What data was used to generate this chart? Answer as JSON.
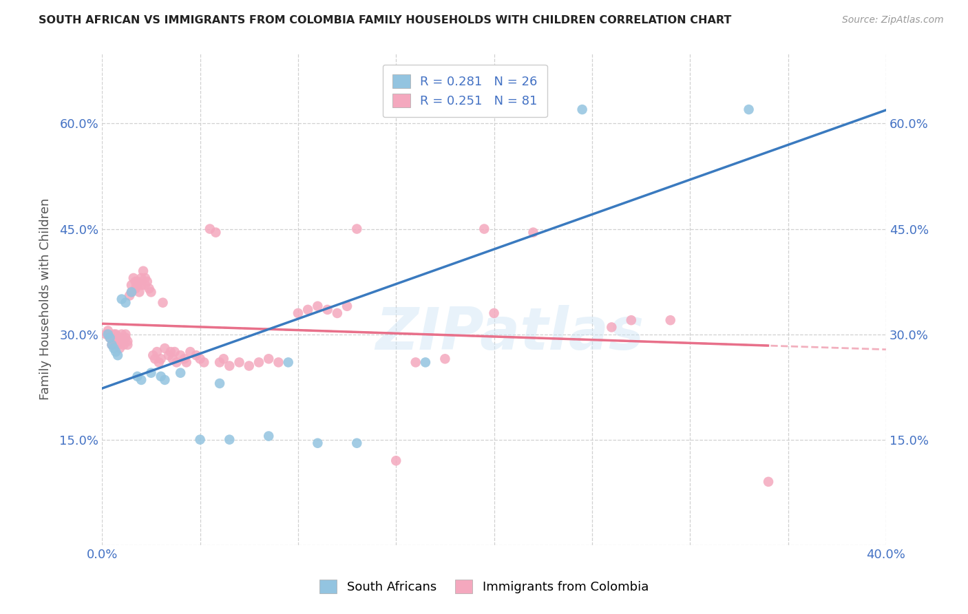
{
  "title": "SOUTH AFRICAN VS IMMIGRANTS FROM COLOMBIA FAMILY HOUSEHOLDS WITH CHILDREN CORRELATION CHART",
  "source": "Source: ZipAtlas.com",
  "ylabel": "Family Households with Children",
  "xlim": [
    0.0,
    0.4
  ],
  "ylim": [
    0.0,
    0.7
  ],
  "x_ticks": [
    0.0,
    0.05,
    0.1,
    0.15,
    0.2,
    0.25,
    0.3,
    0.35,
    0.4
  ],
  "y_ticks": [
    0.0,
    0.15,
    0.3,
    0.45,
    0.6
  ],
  "blue_R": 0.281,
  "blue_N": 26,
  "pink_R": 0.251,
  "pink_N": 81,
  "blue_color": "#93c4e0",
  "pink_color": "#f4a8be",
  "blue_line_color": "#3a7abf",
  "pink_line_color": "#e8708a",
  "blue_scatter": [
    [
      0.003,
      0.3
    ],
    [
      0.004,
      0.295
    ],
    [
      0.005,
      0.285
    ],
    [
      0.006,
      0.28
    ],
    [
      0.007,
      0.275
    ],
    [
      0.008,
      0.27
    ],
    [
      0.01,
      0.35
    ],
    [
      0.012,
      0.345
    ],
    [
      0.015,
      0.36
    ],
    [
      0.018,
      0.24
    ],
    [
      0.02,
      0.235
    ],
    [
      0.025,
      0.245
    ],
    [
      0.03,
      0.24
    ],
    [
      0.032,
      0.235
    ],
    [
      0.04,
      0.245
    ],
    [
      0.05,
      0.15
    ],
    [
      0.06,
      0.23
    ],
    [
      0.065,
      0.15
    ],
    [
      0.085,
      0.155
    ],
    [
      0.095,
      0.26
    ],
    [
      0.11,
      0.145
    ],
    [
      0.13,
      0.145
    ],
    [
      0.165,
      0.26
    ],
    [
      0.205,
      0.62
    ],
    [
      0.245,
      0.62
    ],
    [
      0.33,
      0.62
    ]
  ],
  "pink_scatter": [
    [
      0.002,
      0.3
    ],
    [
      0.003,
      0.305
    ],
    [
      0.004,
      0.295
    ],
    [
      0.005,
      0.285
    ],
    [
      0.006,
      0.29
    ],
    [
      0.006,
      0.3
    ],
    [
      0.007,
      0.295
    ],
    [
      0.007,
      0.3
    ],
    [
      0.008,
      0.29
    ],
    [
      0.008,
      0.285
    ],
    [
      0.009,
      0.28
    ],
    [
      0.009,
      0.295
    ],
    [
      0.01,
      0.3
    ],
    [
      0.01,
      0.29
    ],
    [
      0.011,
      0.285
    ],
    [
      0.012,
      0.295
    ],
    [
      0.012,
      0.3
    ],
    [
      0.013,
      0.29
    ],
    [
      0.013,
      0.285
    ],
    [
      0.014,
      0.355
    ],
    [
      0.015,
      0.36
    ],
    [
      0.015,
      0.37
    ],
    [
      0.016,
      0.38
    ],
    [
      0.017,
      0.375
    ],
    [
      0.017,
      0.365
    ],
    [
      0.018,
      0.37
    ],
    [
      0.018,
      0.375
    ],
    [
      0.019,
      0.36
    ],
    [
      0.02,
      0.37
    ],
    [
      0.02,
      0.38
    ],
    [
      0.021,
      0.39
    ],
    [
      0.022,
      0.38
    ],
    [
      0.022,
      0.37
    ],
    [
      0.023,
      0.375
    ],
    [
      0.024,
      0.365
    ],
    [
      0.025,
      0.36
    ],
    [
      0.026,
      0.27
    ],
    [
      0.027,
      0.265
    ],
    [
      0.028,
      0.275
    ],
    [
      0.029,
      0.26
    ],
    [
      0.03,
      0.265
    ],
    [
      0.031,
      0.345
    ],
    [
      0.032,
      0.28
    ],
    [
      0.034,
      0.27
    ],
    [
      0.035,
      0.275
    ],
    [
      0.036,
      0.265
    ],
    [
      0.037,
      0.275
    ],
    [
      0.038,
      0.26
    ],
    [
      0.04,
      0.27
    ],
    [
      0.042,
      0.265
    ],
    [
      0.043,
      0.26
    ],
    [
      0.045,
      0.275
    ],
    [
      0.048,
      0.27
    ],
    [
      0.05,
      0.265
    ],
    [
      0.052,
      0.26
    ],
    [
      0.055,
      0.45
    ],
    [
      0.058,
      0.445
    ],
    [
      0.06,
      0.26
    ],
    [
      0.062,
      0.265
    ],
    [
      0.065,
      0.255
    ],
    [
      0.07,
      0.26
    ],
    [
      0.075,
      0.255
    ],
    [
      0.08,
      0.26
    ],
    [
      0.085,
      0.265
    ],
    [
      0.09,
      0.26
    ],
    [
      0.1,
      0.33
    ],
    [
      0.105,
      0.335
    ],
    [
      0.11,
      0.34
    ],
    [
      0.115,
      0.335
    ],
    [
      0.12,
      0.33
    ],
    [
      0.125,
      0.34
    ],
    [
      0.13,
      0.45
    ],
    [
      0.15,
      0.12
    ],
    [
      0.16,
      0.26
    ],
    [
      0.175,
      0.265
    ],
    [
      0.195,
      0.45
    ],
    [
      0.2,
      0.33
    ],
    [
      0.22,
      0.445
    ],
    [
      0.26,
      0.31
    ],
    [
      0.27,
      0.32
    ],
    [
      0.29,
      0.32
    ],
    [
      0.34,
      0.09
    ]
  ],
  "watermark": "ZIPatlas",
  "background_color": "#ffffff",
  "grid_color": "#d0d0d0"
}
